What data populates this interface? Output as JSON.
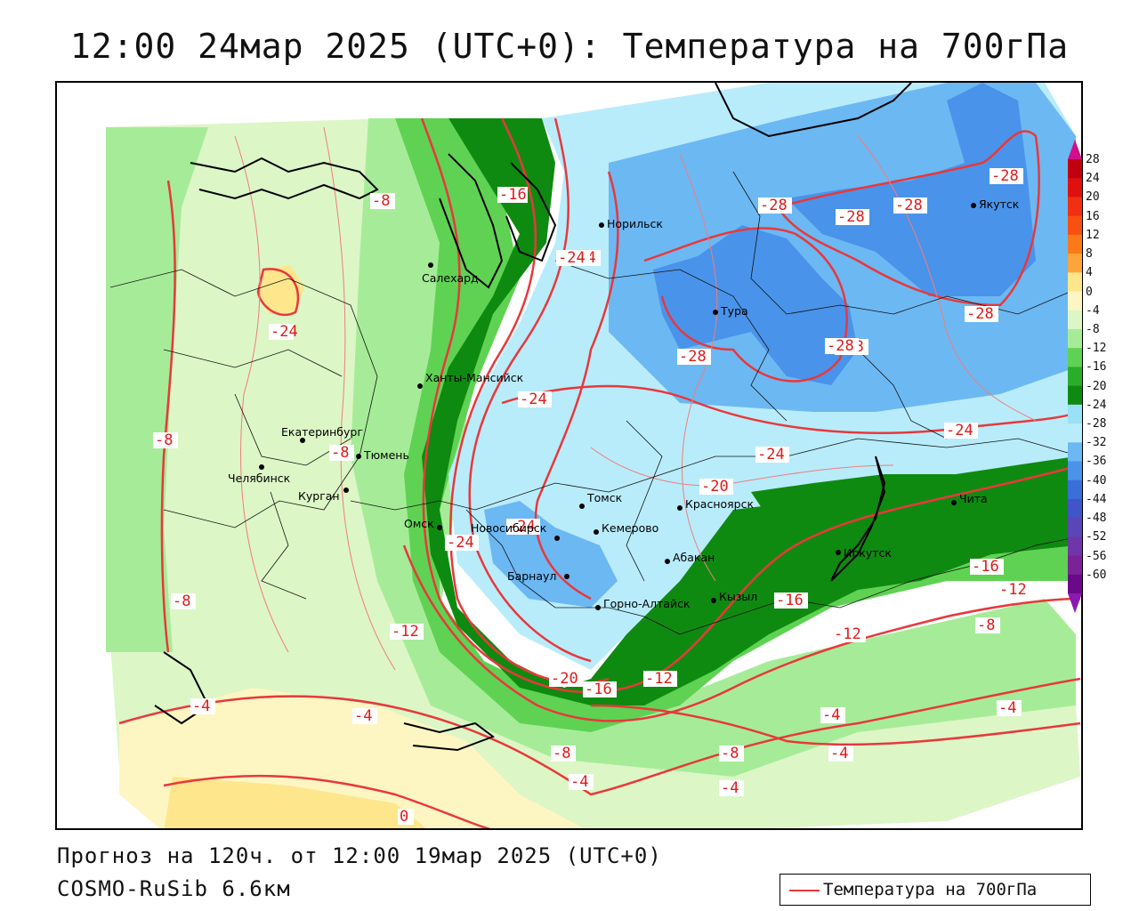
{
  "title": "12:00 24мар 2025 (UTC+0): Температура на 700гПа",
  "footer": {
    "forecast": "Прогноз на 120ч. от 12:00 19мар 2025 (UTC+0)",
    "model": "COSMO-RuSib 6.6км"
  },
  "legend": {
    "label": "Температура на 700гПа",
    "line_color": "#e8383b"
  },
  "colorbar": {
    "ticks": [
      "28",
      "24",
      "20",
      "16",
      "12",
      "8",
      "4",
      "0",
      "-4",
      "-8",
      "-12",
      "-16",
      "-20",
      "-24",
      "-28",
      "-32",
      "-36",
      "-40",
      "-44",
      "-48",
      "-52",
      "-56",
      "-60"
    ],
    "colors": [
      "#c0000e",
      "#e0100e",
      "#f03010",
      "#f85010",
      "#fb7a18",
      "#fda53a",
      "#fde68c",
      "#fdf6c2",
      "#dcf6c6",
      "#a6ec98",
      "#5fd253",
      "#2aae2a",
      "#0f8a10",
      "#9ae0f6",
      "#b8ecfb",
      "#6cb8f3",
      "#4a93ea",
      "#3a6ed8",
      "#3f55c8",
      "#5a46b8",
      "#7035a8",
      "#7a2398",
      "#6a0a8a"
    ]
  },
  "cities": [
    {
      "name": "Норильск"
    },
    {
      "name": "Якутск"
    },
    {
      "name": "Салехард"
    },
    {
      "name": "Тура"
    },
    {
      "name": "Ханты-Мансийск"
    },
    {
      "name": "Екатеринбург"
    },
    {
      "name": "Тюмень"
    },
    {
      "name": "Челябинск"
    },
    {
      "name": "Курган"
    },
    {
      "name": "Омск"
    },
    {
      "name": "Томск"
    },
    {
      "name": "Новосибирск"
    },
    {
      "name": "Кемерово"
    },
    {
      "name": "Красноярск"
    },
    {
      "name": "Абакан"
    },
    {
      "name": "Барнаул"
    },
    {
      "name": "Горно-Алтайск"
    },
    {
      "name": "Кызыл"
    },
    {
      "name": "Иркутск"
    },
    {
      "name": "Чита"
    }
  ],
  "contour_labels": [
    "-8",
    "-16",
    "-24",
    "-28",
    "-28",
    "-28",
    "-28",
    "-28",
    "-24",
    "-28",
    "-28",
    "-24",
    "-20",
    "-24",
    "-24",
    "-24",
    "-24",
    "-8",
    "-8",
    "-8",
    "-4",
    "-12",
    "-20",
    "-16",
    "-12",
    "-16",
    "-12",
    "-16",
    "-12",
    "-8",
    "-4",
    "-4",
    "-8",
    "-8",
    "-4",
    "-4",
    "-4",
    "0",
    "-28",
    "-24",
    "-4"
  ]
}
